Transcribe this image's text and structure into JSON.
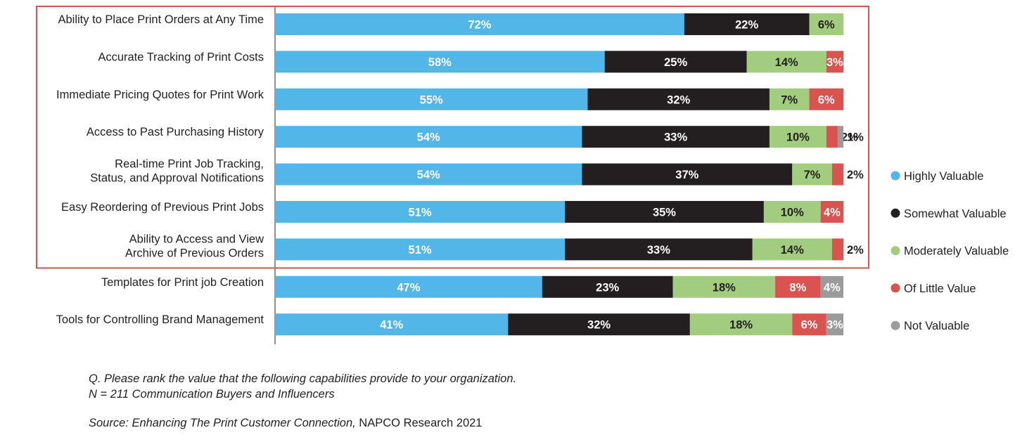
{
  "chart_data": {
    "type": "bar",
    "orientation": "horizontal",
    "stacked": true,
    "categories": [
      "Ability to Place Print Orders at Any Time",
      "Accurate Tracking of Print Costs",
      "Immediate Pricing Quotes for Print Work",
      "Access to Past Purchasing History",
      "Real-time Print Job Tracking, Status, and Approval Notifications",
      "Easy Reordering of Previous Print Jobs",
      "Ability to Access and View Archive of Previous Orders",
      "Templates for Print job Creation",
      "Tools for Controlling Brand Management"
    ],
    "series": [
      {
        "name": "Highly Valuable",
        "color": "#52b7e8",
        "values": [
          72,
          58,
          55,
          54,
          54,
          51,
          51,
          47,
          41
        ]
      },
      {
        "name": "Somewhat Valuable",
        "color": "#231f20",
        "values": [
          22,
          25,
          32,
          33,
          37,
          35,
          33,
          23,
          32
        ]
      },
      {
        "name": "Moderately Valuable",
        "color": "#a2cd7e",
        "values": [
          6,
          14,
          7,
          10,
          7,
          10,
          14,
          18,
          18
        ]
      },
      {
        "name": "Of Little Value",
        "color": "#d9534f",
        "values": [
          0,
          3,
          6,
          2,
          2,
          4,
          2,
          8,
          6
        ]
      },
      {
        "name": "Not Valuable",
        "color": "#9b9b9b",
        "values": [
          0,
          0,
          0,
          1,
          0,
          0,
          0,
          4,
          3
        ]
      }
    ],
    "value_suffix": "%",
    "legend_position": "right",
    "highlighted_categories": 7,
    "highlight_color": "#d9534f"
  },
  "notes": {
    "question": "Q.  Please rank the value that the following capabilities provide to your organization.",
    "sample": "N = 211 Communication Buyers and Influencers",
    "source_prefix": "Source: ",
    "source_title": "Enhancing The Print Customer Connection,",
    "source_publisher": " NAPCO Research 2021"
  }
}
